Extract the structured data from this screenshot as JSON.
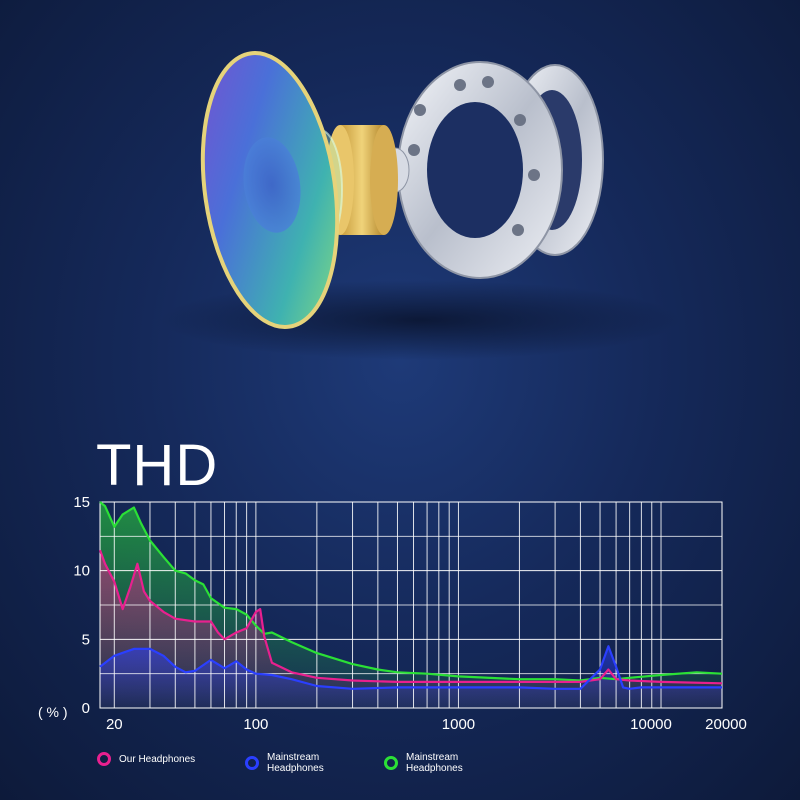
{
  "title": "THD",
  "chart_data": {
    "type": "area",
    "title": "THD",
    "xlabel": "",
    "ylabel": "( % )",
    "x_scale": "log",
    "xlim": [
      20,
      20000
    ],
    "ylim": [
      0,
      15
    ],
    "x_tick_labels": [
      "20",
      "100",
      "1000",
      "10000",
      "20000"
    ],
    "x_ticks": [
      20,
      100,
      1000,
      10000,
      20000
    ],
    "y_ticks": [
      0,
      5,
      10,
      15
    ],
    "y_tick_labels": [
      "0",
      "5",
      "10",
      "15"
    ],
    "grid": true,
    "legend_position": "bottom",
    "series": [
      {
        "name": "Our Headphones",
        "color": "#e8208f",
        "x": [
          17,
          18,
          20,
          22,
          24,
          26,
          28,
          30,
          35,
          40,
          50,
          60,
          65,
          70,
          80,
          90,
          100,
          105,
          110,
          120,
          150,
          200,
          300,
          500,
          1000,
          2000,
          3000,
          4000,
          5000,
          5500,
          6000,
          7000,
          10000,
          20000
        ],
        "y": [
          11.5,
          10.5,
          9.2,
          7.2,
          8.8,
          10.5,
          8.5,
          7.8,
          7.0,
          6.5,
          6.3,
          6.3,
          5.5,
          5.0,
          5.5,
          5.8,
          7.0,
          7.2,
          5.2,
          3.3,
          2.6,
          2.2,
          2.0,
          1.9,
          1.9,
          1.9,
          1.9,
          1.9,
          2.1,
          2.8,
          2.1,
          2.0,
          1.9,
          1.8
        ]
      },
      {
        "name": "Mainstream\nHeadphones",
        "color": "#2a3fff",
        "x": [
          17,
          20,
          25,
          30,
          35,
          40,
          45,
          50,
          60,
          70,
          80,
          90,
          100,
          120,
          150,
          200,
          300,
          500,
          1000,
          2000,
          3000,
          4000,
          5000,
          5500,
          6000,
          6500,
          7000,
          8000,
          10000,
          20000
        ],
        "y": [
          3.0,
          3.8,
          4.3,
          4.3,
          3.8,
          3.0,
          2.6,
          2.7,
          3.5,
          2.9,
          3.4,
          2.8,
          2.5,
          2.4,
          2.1,
          1.6,
          1.4,
          1.5,
          1.5,
          1.5,
          1.4,
          1.4,
          2.8,
          4.5,
          3.0,
          1.5,
          1.4,
          1.5,
          1.5,
          1.5
        ]
      },
      {
        "name": "Mainstream\nHeadphones",
        "color": "#2be036",
        "x": [
          17,
          18,
          20,
          22,
          25,
          27,
          30,
          35,
          40,
          45,
          50,
          55,
          60,
          70,
          80,
          90,
          100,
          110,
          120,
          150,
          200,
          300,
          400,
          500,
          700,
          1000,
          2000,
          3000,
          4000,
          5000,
          6000,
          7000,
          10000,
          15000,
          20000
        ],
        "y": [
          15.0,
          14.7,
          13.2,
          14.1,
          14.6,
          13.5,
          12.2,
          11.0,
          10.0,
          9.8,
          9.3,
          9.0,
          8.0,
          7.3,
          7.2,
          6.8,
          6.0,
          5.4,
          5.5,
          4.8,
          4.0,
          3.2,
          2.8,
          2.6,
          2.5,
          2.3,
          2.1,
          2.1,
          2.0,
          2.2,
          2.1,
          2.2,
          2.4,
          2.6,
          2.5
        ]
      }
    ]
  }
}
